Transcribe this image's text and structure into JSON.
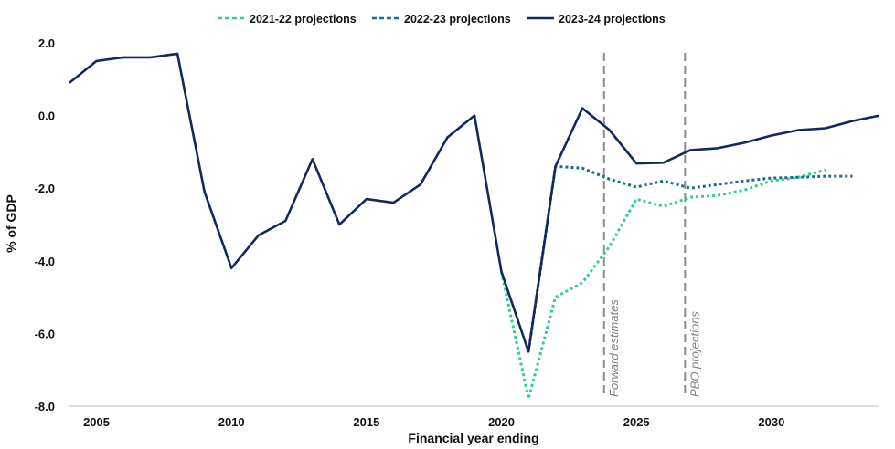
{
  "chart_data": {
    "type": "line",
    "title": "",
    "xlabel": "Financial year ending",
    "ylabel": "% of GDP",
    "xlim": [
      2004,
      2034
    ],
    "ylim": [
      -8.0,
      2.0
    ],
    "x_ticks": [
      2005,
      2010,
      2015,
      2020,
      2025,
      2030
    ],
    "y_ticks": [
      2.0,
      0.0,
      -2.0,
      -4.0,
      -6.0,
      -8.0
    ],
    "y_tick_labels": [
      "2.0",
      "0.0",
      "-2.0",
      "-4.0",
      "-6.0",
      "-8.0"
    ],
    "grid": false,
    "legend_position": "top-center",
    "series": [
      {
        "name": "2021-22 projections",
        "style": "dotted",
        "color": "#2fcf92",
        "x": [
          2020,
          2021,
          2022,
          2023,
          2024,
          2025,
          2026,
          2027,
          2028,
          2029,
          2030,
          2031,
          2032
        ],
        "y": [
          -4.3,
          -7.8,
          -5.0,
          -4.6,
          -3.6,
          -2.3,
          -2.5,
          -2.25,
          -2.2,
          -2.05,
          -1.8,
          -1.7,
          -1.5
        ]
      },
      {
        "name": "2022-23 projections",
        "style": "dotted",
        "color": "#1c6b8a",
        "x": [
          2021,
          2022,
          2023,
          2024,
          2025,
          2026,
          2027,
          2028,
          2029,
          2030,
          2031,
          2032,
          2033
        ],
        "y": [
          -6.5,
          -1.4,
          -1.45,
          -1.75,
          -1.97,
          -1.8,
          -2.0,
          -1.9,
          -1.8,
          -1.72,
          -1.7,
          -1.67,
          -1.67
        ]
      },
      {
        "name": "2023-24 projections",
        "style": "solid",
        "color": "#13285e",
        "x": [
          2004,
          2005,
          2006,
          2007,
          2008,
          2009,
          2010,
          2011,
          2012,
          2013,
          2014,
          2015,
          2016,
          2017,
          2018,
          2019,
          2020,
          2021,
          2022,
          2023,
          2024,
          2025,
          2026,
          2027,
          2028,
          2029,
          2030,
          2031,
          2032,
          2033,
          2034
        ],
        "y": [
          0.9,
          1.5,
          1.6,
          1.6,
          1.7,
          -2.1,
          -4.2,
          -3.3,
          -2.9,
          -1.2,
          -3.0,
          -2.3,
          -2.4,
          -1.9,
          -0.6,
          0.0,
          -4.3,
          -6.5,
          -1.4,
          0.2,
          -0.4,
          -1.32,
          -1.3,
          -0.95,
          -0.9,
          -0.75,
          -0.55,
          -0.4,
          -0.35,
          -0.15,
          0.0
        ]
      }
    ],
    "vlines": [
      {
        "x": 2023.8,
        "label": "Forward estimates"
      },
      {
        "x": 2026.8,
        "label": "PBO projections"
      }
    ]
  }
}
